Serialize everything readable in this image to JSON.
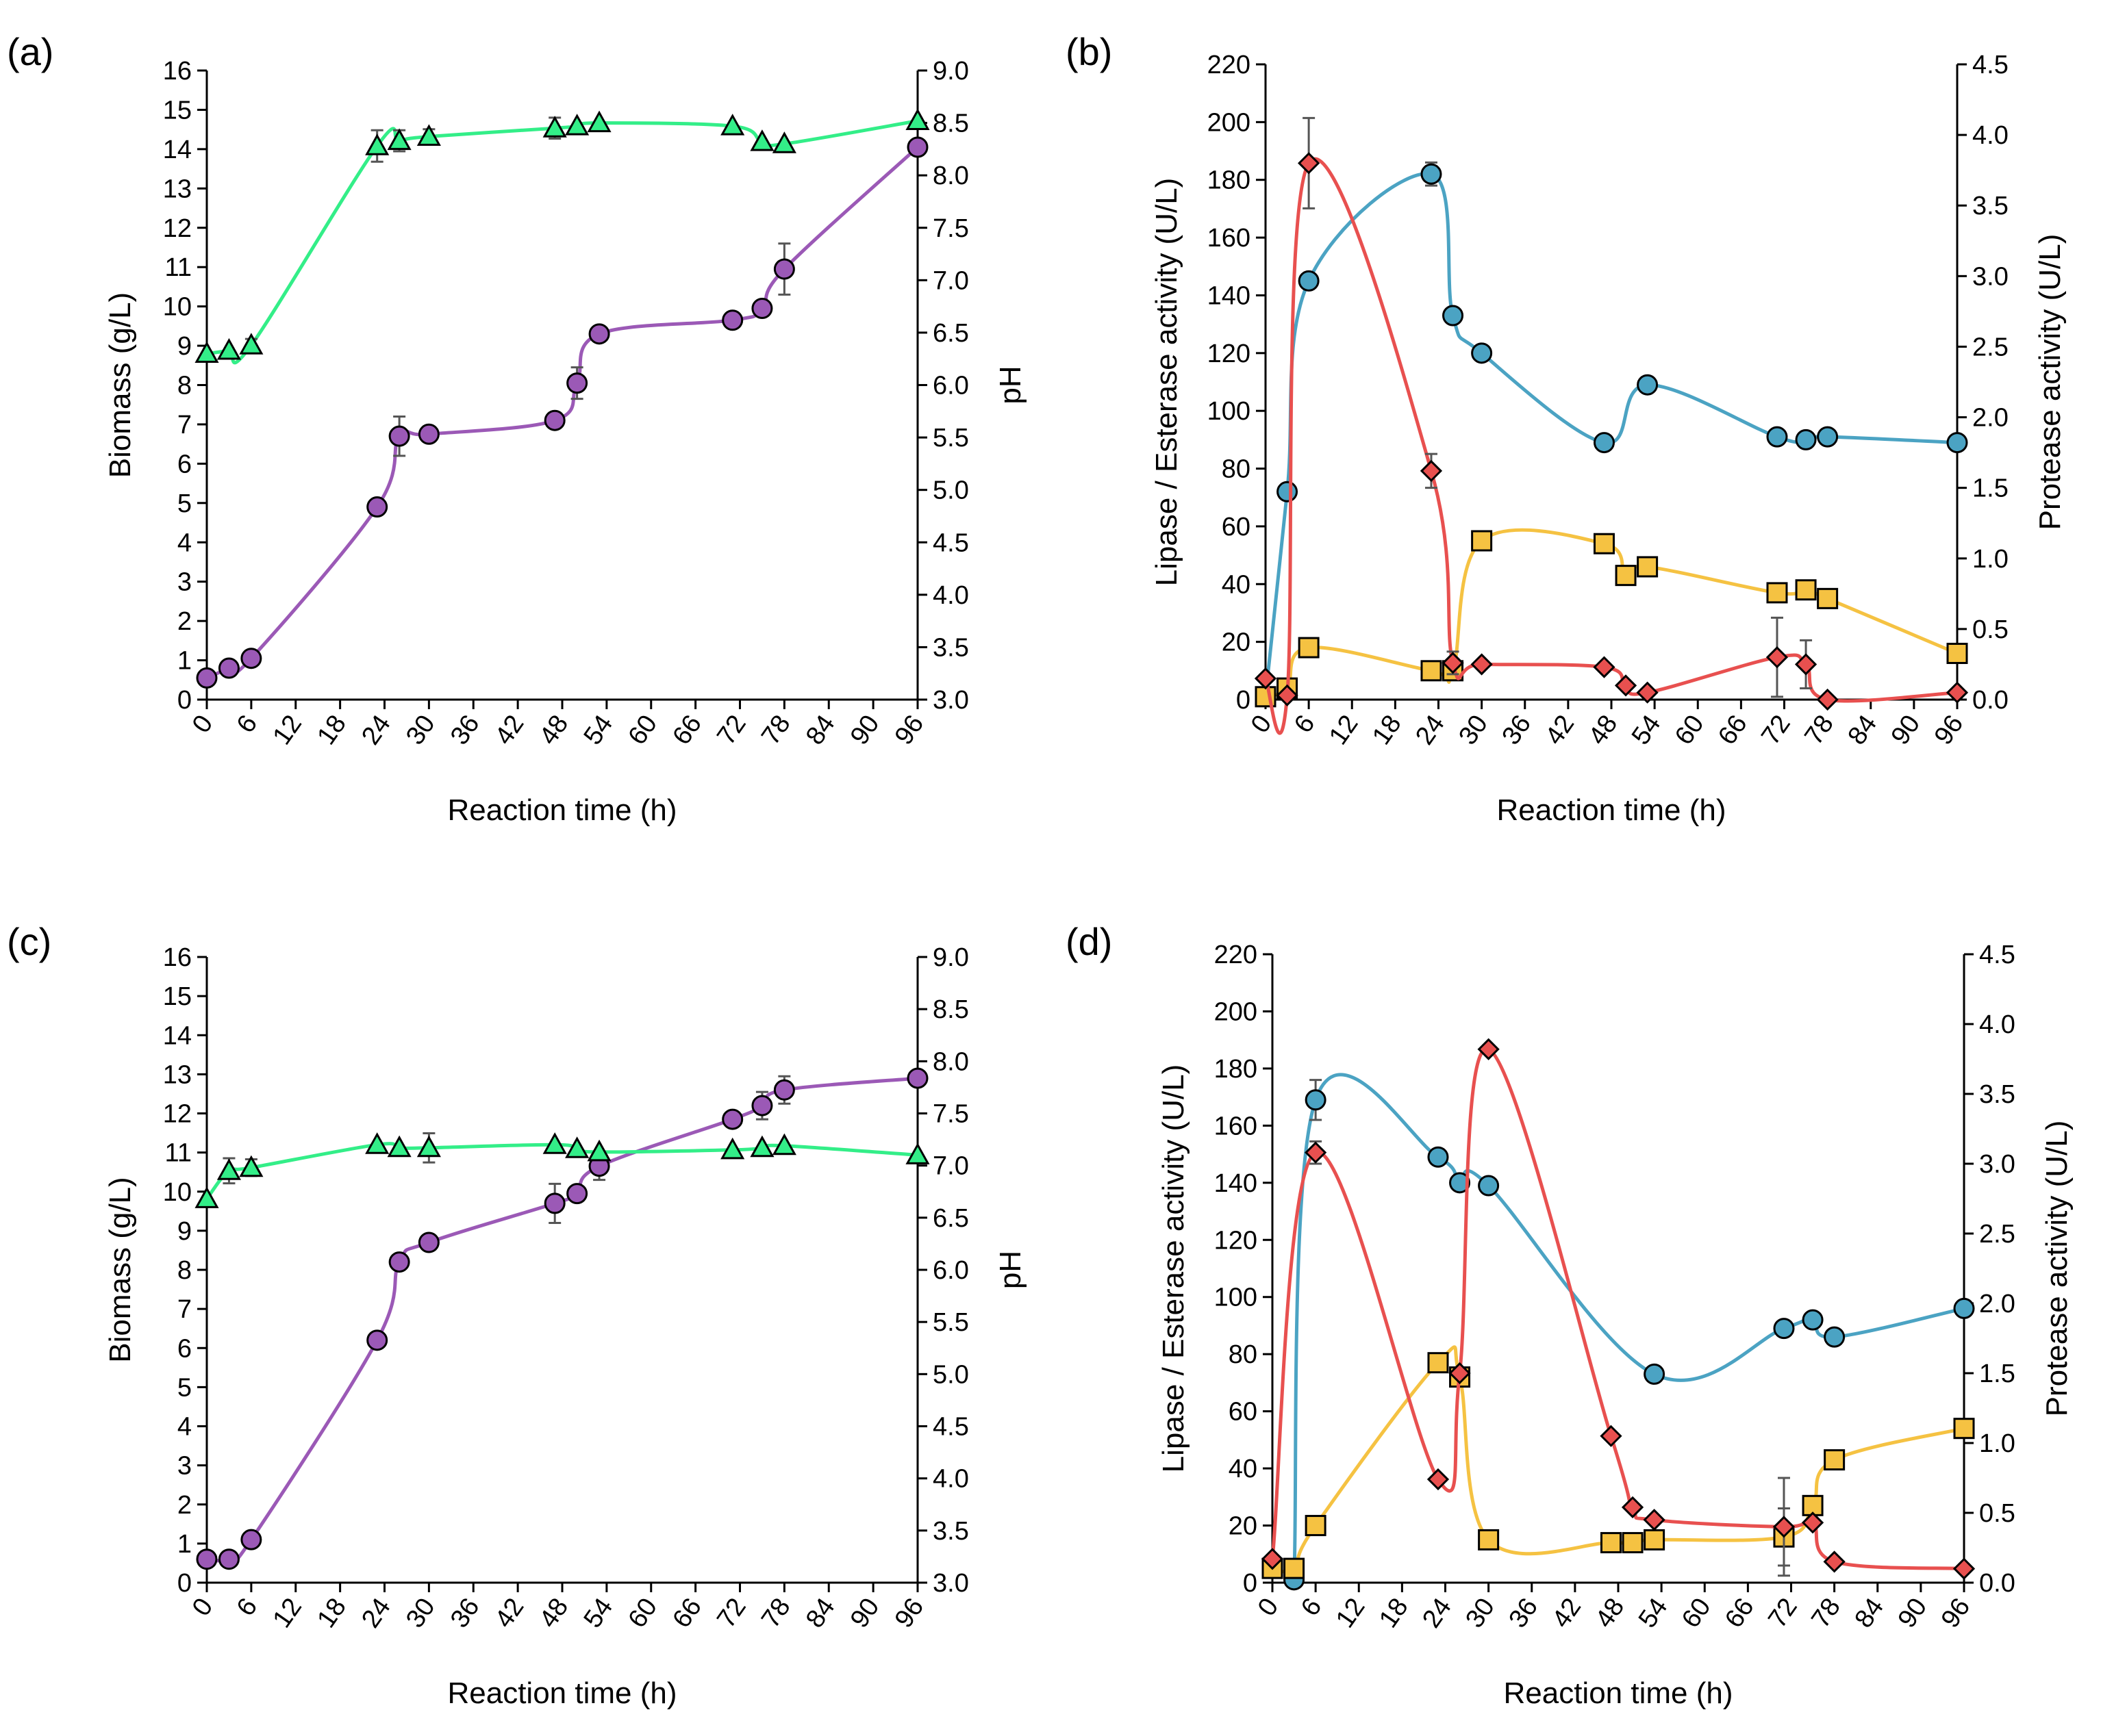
{
  "figure": {
    "description_free": true
  },
  "colors": {
    "purple": "#9b59b6",
    "green": "#33ee88",
    "blue": "#4ba3c3",
    "red": "#e8504f",
    "yellow": "#f5c242",
    "axis": "#000000",
    "errorbar": "#555555"
  },
  "chart_data": [
    {
      "panel": "(a)",
      "type": "line",
      "xlabel": "Reaction time (h)",
      "ylabel": "Biomass (g/L)",
      "y2label": "pH",
      "xlim": [
        0,
        96
      ],
      "xticks": [
        "0",
        "6",
        "12",
        "18",
        "24",
        "30",
        "36",
        "42",
        "48",
        "54",
        "60",
        "66",
        "72",
        "78",
        "84",
        "90",
        "96"
      ],
      "ylim": [
        0,
        16
      ],
      "yticks": [
        "0",
        "1",
        "2",
        "3",
        "4",
        "5",
        "6",
        "7",
        "8",
        "9",
        "10",
        "11",
        "12",
        "13",
        "14",
        "15",
        "16"
      ],
      "y2lim": [
        3.0,
        9.0
      ],
      "y2ticks": [
        "3.0",
        "3.5",
        "4.0",
        "4.5",
        "5.0",
        "5.5",
        "6.0",
        "6.5",
        "7.0",
        "7.5",
        "8.0",
        "8.5",
        "9.0"
      ],
      "series": [
        {
          "name": "Biomass",
          "axis": "left",
          "marker": "circle",
          "color": "purple",
          "x": [
            0,
            3,
            6,
            23,
            26,
            30,
            47,
            50,
            53,
            71,
            75,
            78,
            96
          ],
          "y": [
            0.55,
            0.8,
            1.05,
            4.9,
            6.7,
            6.75,
            7.1,
            8.05,
            9.3,
            9.65,
            9.95,
            10.95,
            14.05
          ],
          "err": [
            0,
            0,
            0,
            0,
            0.5,
            0,
            0,
            0.4,
            0,
            0,
            0,
            0.65,
            0
          ]
        },
        {
          "name": "pH",
          "axis": "right",
          "marker": "triangle",
          "color": "green",
          "x": [
            0,
            3,
            6,
            23,
            26,
            30,
            47,
            50,
            53,
            71,
            75,
            78,
            96
          ],
          "y": [
            6.3,
            6.33,
            6.38,
            8.28,
            8.33,
            8.37,
            8.45,
            8.47,
            8.5,
            8.47,
            8.32,
            8.3,
            8.52
          ],
          "err": [
            0,
            0,
            0.06,
            0.15,
            0.1,
            0.07,
            0.1,
            0,
            0,
            0,
            0,
            0,
            0
          ]
        }
      ]
    },
    {
      "panel": "(b)",
      "type": "line",
      "xlabel": "Reaction time (h)",
      "ylabel": "Lipase / Esterase activity (U/L)",
      "y2label": "Protease activity (U/L)",
      "xlim": [
        0,
        96
      ],
      "xticks": [
        "0",
        "6",
        "12",
        "18",
        "24",
        "30",
        "36",
        "42",
        "48",
        "54",
        "60",
        "66",
        "72",
        "78",
        "84",
        "90",
        "96"
      ],
      "ylim": [
        0,
        220
      ],
      "yticks": [
        "0",
        "20",
        "40",
        "60",
        "80",
        "100",
        "120",
        "140",
        "160",
        "180",
        "200",
        "220"
      ],
      "y2lim": [
        0,
        4.5
      ],
      "y2ticks": [
        "0.0",
        "0.5",
        "1.0",
        "1.5",
        "2.0",
        "2.5",
        "3.0",
        "3.5",
        "4.0",
        "4.5"
      ],
      "series": [
        {
          "name": "Lipase",
          "axis": "left",
          "marker": "circle",
          "color": "blue",
          "x": [
            0,
            3,
            6,
            23,
            26,
            30,
            47,
            53,
            71,
            75,
            78,
            96
          ],
          "y": [
            1,
            72,
            145,
            182,
            133,
            120,
            89,
            109,
            91,
            90,
            91,
            89
          ],
          "err": [
            0,
            0,
            0,
            4,
            0,
            0,
            0,
            0,
            0,
            0,
            0,
            0
          ]
        },
        {
          "name": "Esterase",
          "axis": "left",
          "marker": "square",
          "color": "yellow",
          "x": [
            0,
            3,
            6,
            23,
            26,
            30,
            47,
            50,
            53,
            71,
            75,
            78,
            96
          ],
          "y": [
            1,
            4,
            18,
            10,
            10,
            55,
            54,
            43,
            46,
            37,
            38,
            35,
            16
          ],
          "err": [
            0,
            0,
            0,
            0,
            0,
            0,
            0,
            0,
            0,
            0,
            0,
            0,
            0
          ]
        },
        {
          "name": "Protease",
          "axis": "right",
          "marker": "diamond",
          "color": "red",
          "x": [
            0,
            3,
            6,
            23,
            26,
            30,
            47,
            50,
            53,
            71,
            75,
            78,
            96
          ],
          "y": [
            0.15,
            0.03,
            3.8,
            1.62,
            0.26,
            0.25,
            0.23,
            0.1,
            0.05,
            0.3,
            0.25,
            0.0,
            0.05
          ],
          "err": [
            0,
            0,
            0.32,
            0.12,
            0.08,
            0,
            0,
            0,
            0,
            0.28,
            0.17,
            0,
            0
          ]
        }
      ]
    },
    {
      "panel": "(c)",
      "type": "line",
      "xlabel": "Reaction time (h)",
      "ylabel": "Biomass (g/L)",
      "y2label": "pH",
      "xlim": [
        0,
        96
      ],
      "xticks": [
        "0",
        "6",
        "12",
        "18",
        "24",
        "30",
        "36",
        "42",
        "48",
        "54",
        "60",
        "66",
        "72",
        "78",
        "84",
        "90",
        "96"
      ],
      "ylim": [
        0,
        16
      ],
      "yticks": [
        "0",
        "1",
        "2",
        "3",
        "4",
        "5",
        "6",
        "7",
        "8",
        "9",
        "10",
        "11",
        "12",
        "13",
        "14",
        "15",
        "16"
      ],
      "y2lim": [
        3.0,
        9.0
      ],
      "y2ticks": [
        "3.0",
        "3.5",
        "4.0",
        "4.5",
        "5.0",
        "5.5",
        "6.0",
        "6.5",
        "7.0",
        "7.5",
        "8.0",
        "8.5",
        "9.0"
      ],
      "series": [
        {
          "name": "Biomass",
          "axis": "left",
          "marker": "circle",
          "color": "purple",
          "x": [
            0,
            3,
            6,
            23,
            26,
            30,
            47,
            50,
            53,
            71,
            75,
            78,
            96
          ],
          "y": [
            0.6,
            0.6,
            1.1,
            6.2,
            8.2,
            8.7,
            9.7,
            9.95,
            10.65,
            11.85,
            12.2,
            12.6,
            12.9
          ],
          "err": [
            0,
            0,
            0,
            0,
            0,
            0,
            0.5,
            0,
            0.35,
            0,
            0.35,
            0.35,
            0
          ]
        },
        {
          "name": "pH",
          "axis": "right",
          "marker": "triangle",
          "color": "green",
          "x": [
            0,
            3,
            6,
            23,
            26,
            30,
            47,
            50,
            53,
            71,
            75,
            78,
            96
          ],
          "y": [
            6.68,
            6.95,
            6.98,
            7.2,
            7.17,
            7.17,
            7.2,
            7.16,
            7.13,
            7.15,
            7.17,
            7.19,
            7.1
          ],
          "err": [
            0,
            0.12,
            0.08,
            0,
            0,
            0.14,
            0,
            0,
            0,
            0,
            0,
            0,
            0
          ]
        }
      ]
    },
    {
      "panel": "(d)",
      "type": "line",
      "xlabel": "Reaction time (h)",
      "ylabel": "Lipase / Esterase activity (U/L)",
      "y2label": "Protease activity (U/L)",
      "xlim": [
        0,
        96
      ],
      "xticks": [
        "0",
        "6",
        "12",
        "18",
        "24",
        "30",
        "36",
        "42",
        "48",
        "54",
        "60",
        "66",
        "72",
        "78",
        "84",
        "90",
        "96"
      ],
      "ylim": [
        0,
        220
      ],
      "yticks": [
        "0",
        "20",
        "40",
        "60",
        "80",
        "100",
        "120",
        "140",
        "160",
        "180",
        "200",
        "220"
      ],
      "y2lim": [
        0,
        4.5
      ],
      "y2ticks": [
        "0.0",
        "0.5",
        "1.0",
        "1.5",
        "2.0",
        "2.5",
        "3.0",
        "3.5",
        "4.0",
        "4.5"
      ],
      "series": [
        {
          "name": "Lipase",
          "axis": "left",
          "marker": "circle",
          "color": "blue",
          "x": [
            3,
            6,
            23,
            26,
            30,
            53,
            71,
            75,
            78,
            96
          ],
          "y": [
            1,
            169,
            149,
            140,
            139,
            73,
            89,
            92,
            86,
            96
          ],
          "err": [
            0,
            7,
            0,
            0,
            0,
            0,
            0,
            0,
            0,
            0
          ]
        },
        {
          "name": "Esterase",
          "axis": "left",
          "marker": "square",
          "color": "yellow",
          "x": [
            0,
            3,
            6,
            23,
            26,
            30,
            47,
            50,
            53,
            71,
            75,
            78,
            96
          ],
          "y": [
            5,
            5,
            20,
            77,
            72,
            15,
            14,
            14,
            15,
            16,
            27,
            43,
            54
          ],
          "err": [
            0,
            0,
            0,
            0,
            0,
            0,
            0,
            0,
            0,
            10,
            0,
            0,
            0
          ]
        },
        {
          "name": "Protease",
          "axis": "right",
          "marker": "diamond",
          "color": "red",
          "x": [
            0,
            6,
            23,
            26,
            30,
            47,
            50,
            53,
            71,
            75,
            78,
            96
          ],
          "y": [
            0.17,
            3.08,
            0.74,
            1.5,
            3.82,
            1.05,
            0.54,
            0.45,
            0.4,
            0.43,
            0.15,
            0.1
          ],
          "err": [
            0,
            0.08,
            0,
            0,
            0,
            0,
            0,
            0,
            0.35,
            0,
            0,
            0
          ]
        }
      ]
    }
  ]
}
